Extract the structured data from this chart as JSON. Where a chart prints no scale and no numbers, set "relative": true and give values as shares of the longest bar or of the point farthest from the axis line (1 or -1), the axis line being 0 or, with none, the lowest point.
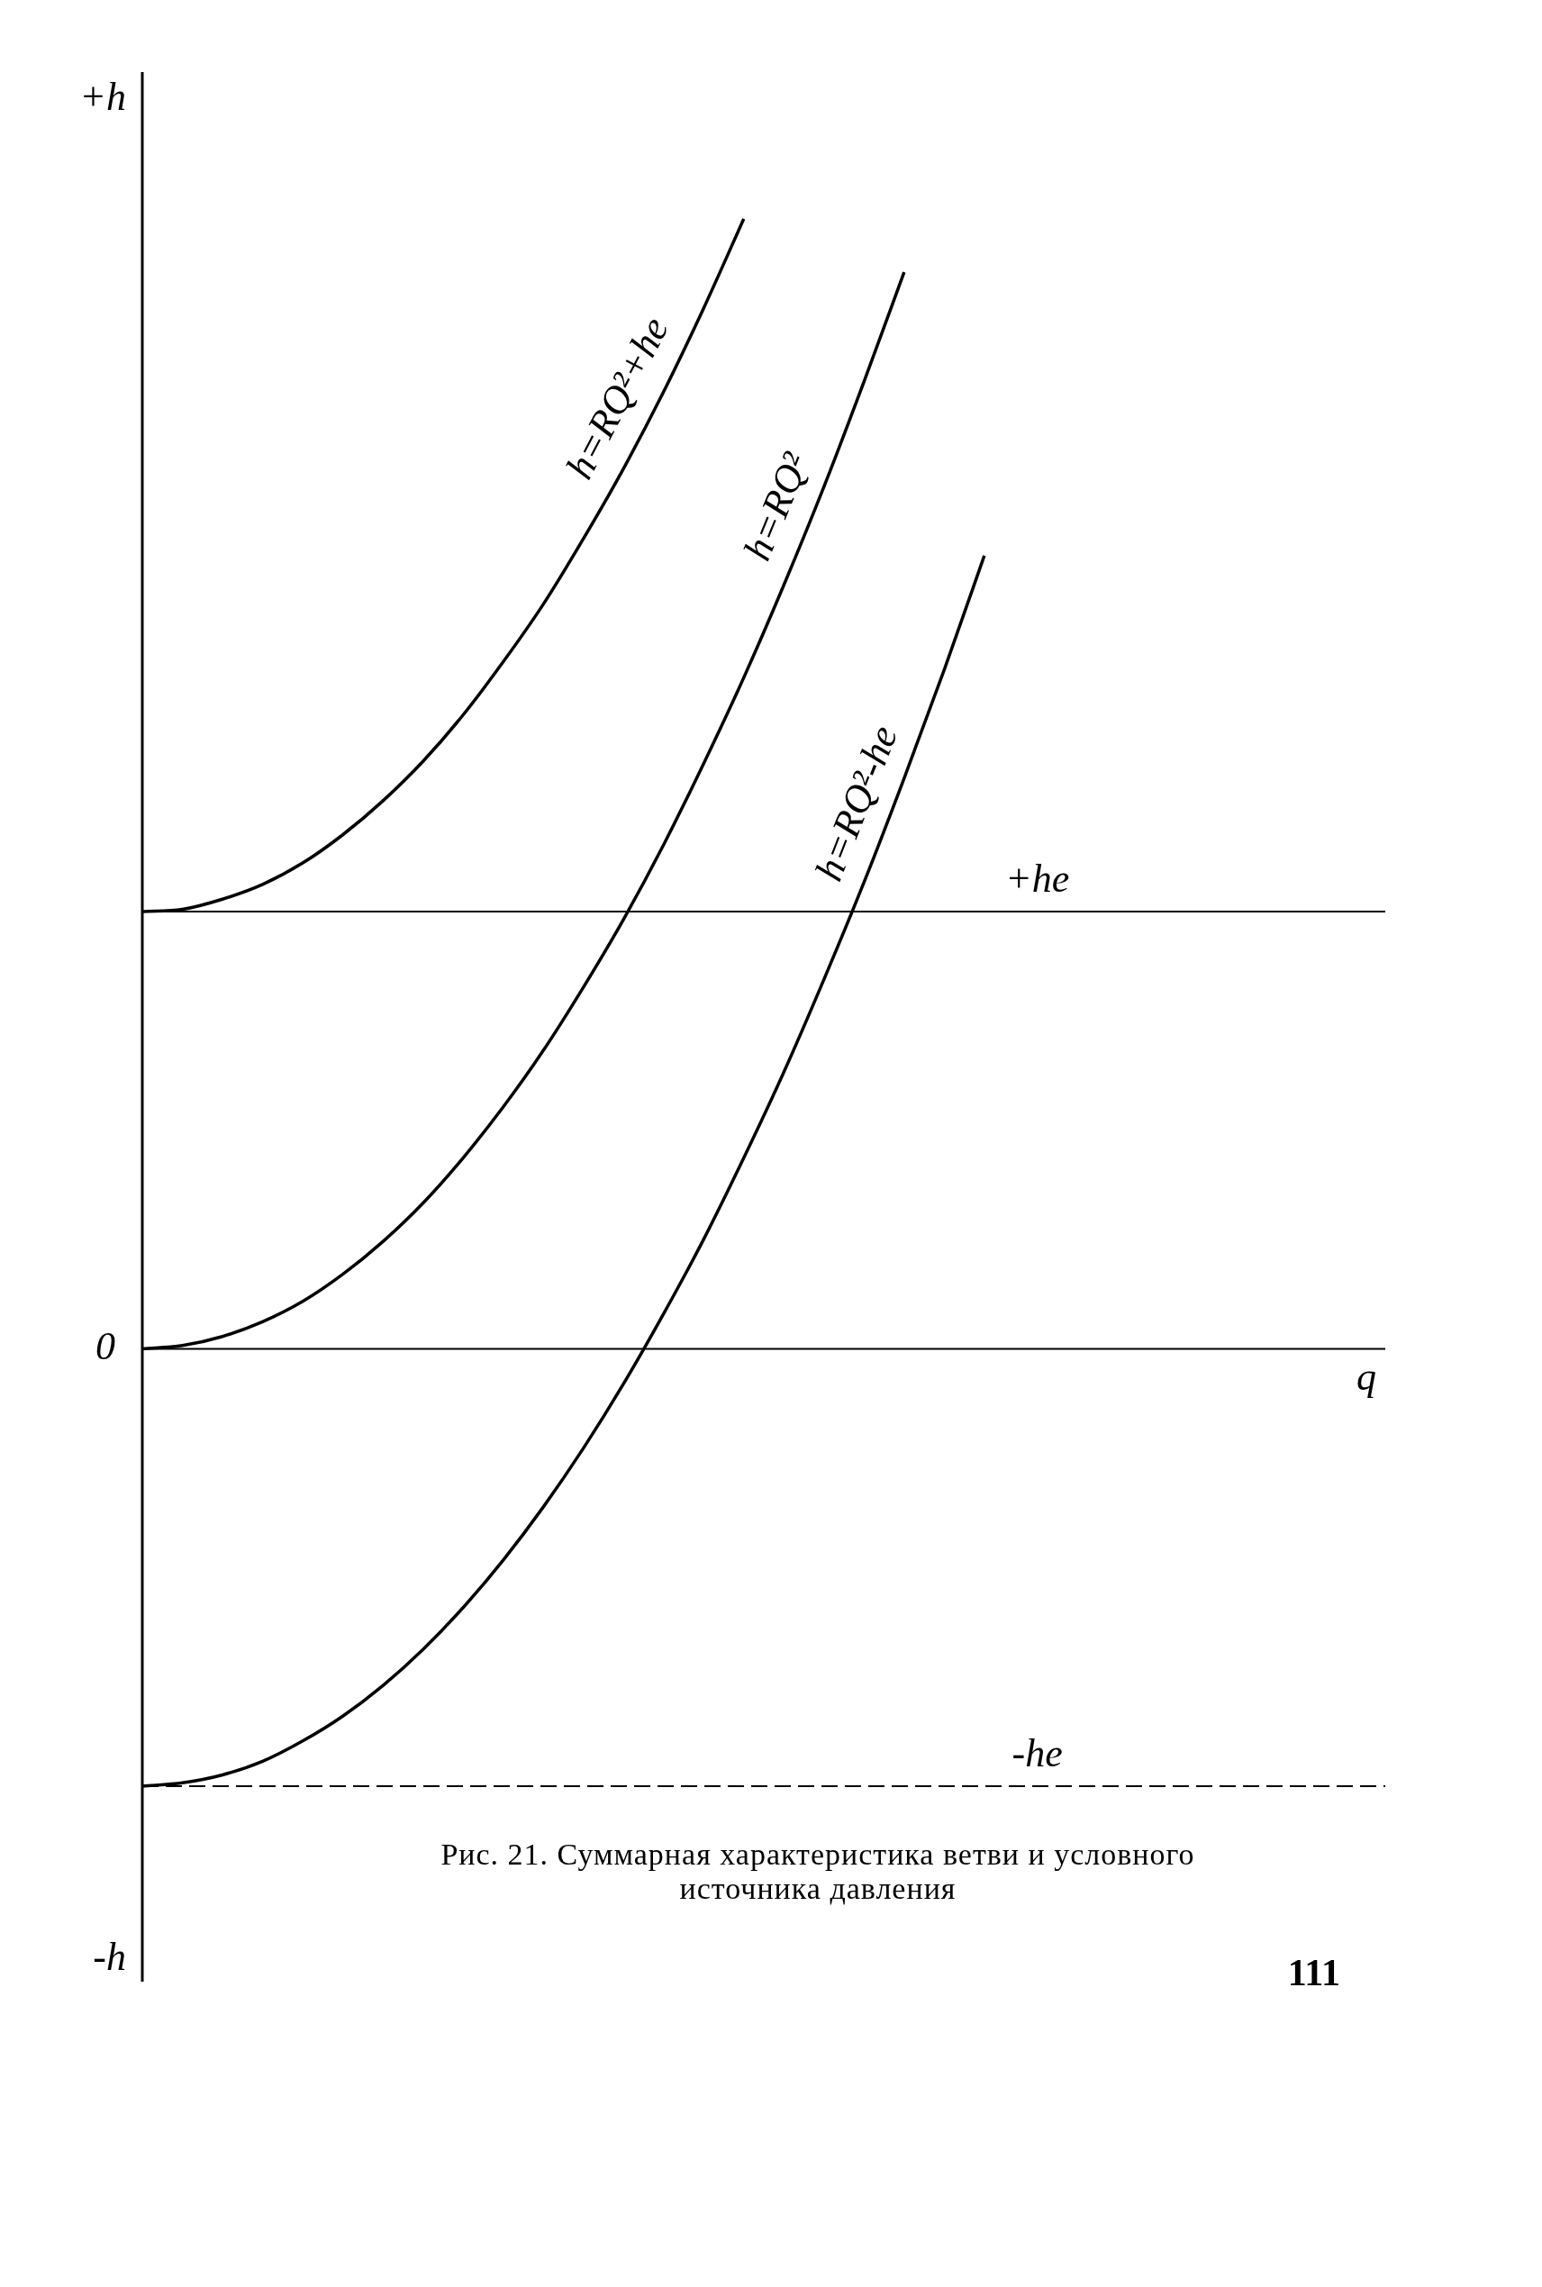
{
  "chart_data": {
    "type": "line",
    "relative": true,
    "title": "Рис. 21. Суммарная характеристика ветви и условного источника давления",
    "ylabel": "+h",
    "xlabel": "q",
    "annotations": [
      "0",
      "-h",
      "111"
    ],
    "grid": false,
    "legend": false,
    "marker": "none",
    "line_style": "solid",
    "categories": [
      null,
      null,
      null,
      null,
      null,
      null,
      null,
      null,
      null,
      null,
      null,
      null,
      null,
      null,
      null,
      null,
      null,
      null,
      null,
      null,
      null,
      null,
      null,
      null,
      null,
      null,
      null,
      null,
      null,
      null,
      null,
      null
    ],
    "series": [
      {
        "name": "h=RQ²+he",
        "color": "#000000",
        "values": [
          0.387,
          0.389,
          0.398,
          0.411,
          0.43,
          0.455,
          0.485,
          0.52,
          0.561,
          0.608,
          0.659,
          0.717,
          0.779,
          0.847,
          0.921,
          1.0,
          null,
          null,
          null,
          null,
          null,
          null,
          null,
          null,
          null,
          null,
          null,
          null,
          null,
          null,
          null,
          null
        ]
      },
      {
        "name": "h=RQ²",
        "color": "#000000",
        "values": [
          0,
          0.003,
          0.011,
          0.024,
          0.042,
          0.066,
          0.095,
          0.129,
          0.169,
          0.214,
          0.264,
          0.32,
          0.38,
          0.446,
          0.518,
          0.594,
          0.676,
          0.763,
          0.856,
          0.953,
          null,
          null,
          null,
          null,
          null,
          null,
          null,
          null,
          null,
          null,
          null,
          null
        ]
      },
      {
        "name": "h=RQ²-he",
        "color": "#000000",
        "values": [
          -0.387,
          -0.384,
          -0.377,
          -0.365,
          -0.347,
          -0.325,
          -0.298,
          -0.266,
          -0.229,
          -0.187,
          -0.14,
          -0.088,
          -0.031,
          0.031,
          0.097,
          0.169,
          0.245,
          0.327,
          0.413,
          0.505,
          0.601,
          0.702,
          null,
          null,
          null,
          null,
          null,
          null,
          null,
          null,
          null,
          null
        ]
      }
    ],
    "ref_lines": [
      {
        "axis": "y",
        "value": 0.387,
        "label": "+he",
        "color": "#000000"
      },
      {
        "axis": "y",
        "value": -0.387,
        "label": "-he",
        "color": "#000000",
        "line_style": "dashed"
      }
    ]
  }
}
